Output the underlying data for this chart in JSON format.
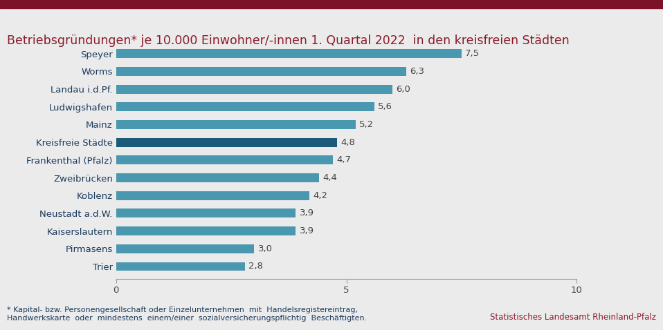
{
  "title": "Betriebsgründungen* je 10.000 Einwohner/-innen 1. Quartal 2022  in den kreisfreien Städten",
  "title_color": "#8B1A2A",
  "categories": [
    "Speyer",
    "Worms",
    "Landau i.d.Pf.",
    "Ludwigshafen",
    "Mainz",
    "Kreisfreie Städte",
    "Frankenthal (Pfalz)",
    "Zweibrücken",
    "Koblenz",
    "Neustadt a.d.W.",
    "Kaiserslautern",
    "Pirmasens",
    "Trier"
  ],
  "values": [
    7.5,
    6.3,
    6.0,
    5.6,
    5.2,
    4.8,
    4.7,
    4.4,
    4.2,
    3.9,
    3.9,
    3.0,
    2.8
  ],
  "bar_colors": [
    "#4A97B0",
    "#4A97B0",
    "#4A97B0",
    "#4A97B0",
    "#4A97B0",
    "#1B5A78",
    "#4A97B0",
    "#4A97B0",
    "#4A97B0",
    "#4A97B0",
    "#4A97B0",
    "#4A97B0",
    "#4A97B0"
  ],
  "value_labels": [
    "7,5",
    "6,3",
    "6,0",
    "5,6",
    "5,2",
    "4,8",
    "4,7",
    "4,4",
    "4,2",
    "3,9",
    "3,9",
    "3,0",
    "2,8"
  ],
  "xlim": [
    0,
    10
  ],
  "xticks": [
    0,
    5,
    10
  ],
  "background_color": "#EBEBEB",
  "plot_background_color": "#EBEBEB",
  "footnote_line1": "* Kapital- bzw. Personengesellschaft oder Einzelunternehmen  mit  Handelsregistereintrag,",
  "footnote_line2": "Handwerkskarte  oder  mindestens  einem/einer  sozialversicherungspflichtig  Beschäftigten.",
  "source": "Statistisches Landesamt Rheinland-Pfalz",
  "top_bar_color": "#7B1228",
  "label_color": "#1A3A5C",
  "axis_label_color": "#444444",
  "footnote_color": "#1A3A5C",
  "source_color": "#8B1A2A",
  "title_fontsize": 12.5,
  "label_fontsize": 9.5,
  "value_fontsize": 9.5,
  "footnote_fontsize": 8,
  "source_fontsize": 8.5,
  "bar_height": 0.5
}
